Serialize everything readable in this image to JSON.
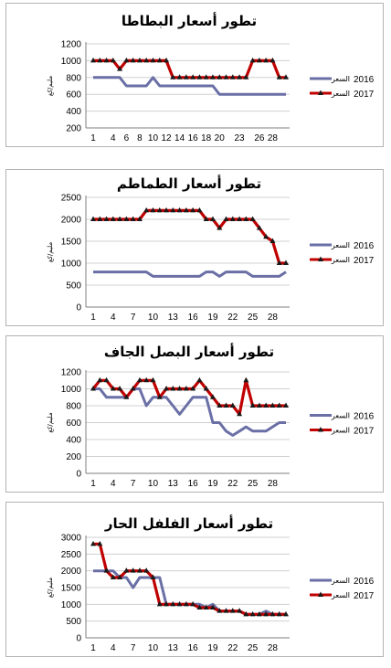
{
  "colors": {
    "series_2016": "#6a6fa5",
    "series_2017": "#c00000",
    "marker_2017": "#1a1a1a",
    "grid": "#d0d0d0",
    "axis": "#7f7f7f"
  },
  "chart_data": [
    {
      "type": "line",
      "title": "تطور أسعار البطاطا",
      "ylabel": "مليم/كغ",
      "ylim": [
        200,
        1200
      ],
      "yticks": [
        200,
        400,
        600,
        800,
        1000,
        1200
      ],
      "xticks": [
        1,
        4,
        6,
        8,
        10,
        12,
        14,
        16,
        18,
        20,
        23,
        26,
        28
      ],
      "x": [
        1,
        2,
        3,
        4,
        5,
        6,
        7,
        8,
        9,
        10,
        11,
        12,
        13,
        14,
        15,
        16,
        17,
        18,
        19,
        20,
        21,
        22,
        23,
        24,
        25,
        26,
        27,
        28,
        29,
        30
      ],
      "series": [
        {
          "name": "2016 السعر",
          "legend_year": "2016",
          "legend_word": "السعر",
          "values": [
            800,
            800,
            800,
            800,
            800,
            700,
            700,
            700,
            700,
            800,
            700,
            700,
            700,
            700,
            700,
            700,
            700,
            700,
            700,
            600,
            600,
            600,
            600,
            600,
            600,
            600,
            600,
            600,
            600,
            600
          ]
        },
        {
          "name": "2017 السعر",
          "legend_year": "2017",
          "legend_word": "السعر",
          "values": [
            1000,
            1000,
            1000,
            1000,
            900,
            1000,
            1000,
            1000,
            1000,
            1000,
            1000,
            1000,
            800,
            800,
            800,
            800,
            800,
            800,
            800,
            800,
            800,
            800,
            800,
            800,
            1000,
            1000,
            1000,
            1000,
            800,
            800
          ]
        }
      ],
      "legend_position": "right"
    },
    {
      "type": "line",
      "title": "تطور أسعار الطماطم",
      "ylabel": "مليم/كغ",
      "ylim": [
        0,
        2500
      ],
      "yticks": [
        0,
        500,
        1000,
        1500,
        2000,
        2500
      ],
      "xticks": [
        1,
        4,
        7,
        10,
        13,
        16,
        19,
        22,
        25,
        28
      ],
      "x": [
        1,
        2,
        3,
        4,
        5,
        6,
        7,
        8,
        9,
        10,
        11,
        12,
        13,
        14,
        15,
        16,
        17,
        18,
        19,
        20,
        21,
        22,
        23,
        24,
        25,
        26,
        27,
        28,
        29,
        30
      ],
      "series": [
        {
          "name": "2016 السعر",
          "legend_year": "2016",
          "legend_word": "السعر",
          "values": [
            800,
            800,
            800,
            800,
            800,
            800,
            800,
            800,
            800,
            700,
            700,
            700,
            700,
            700,
            700,
            700,
            700,
            800,
            800,
            700,
            800,
            800,
            800,
            800,
            700,
            700,
            700,
            700,
            700,
            800
          ]
        },
        {
          "name": "2017 السعر",
          "legend_year": "2017",
          "legend_word": "السعر",
          "values": [
            2000,
            2000,
            2000,
            2000,
            2000,
            2000,
            2000,
            2000,
            2200,
            2200,
            2200,
            2200,
            2200,
            2200,
            2200,
            2200,
            2200,
            2000,
            2000,
            1800,
            2000,
            2000,
            2000,
            2000,
            2000,
            1800,
            1600,
            1500,
            1000,
            1000
          ]
        }
      ],
      "legend_position": "right"
    },
    {
      "type": "line",
      "title": "تطور أسعار البصل الجاف",
      "ylabel": "مليم/كغ",
      "ylim": [
        0,
        1200
      ],
      "yticks": [
        0,
        200,
        400,
        600,
        800,
        1000,
        1200
      ],
      "xticks": [
        1,
        4,
        7,
        10,
        13,
        16,
        19,
        22,
        25,
        28
      ],
      "x": [
        1,
        2,
        3,
        4,
        5,
        6,
        7,
        8,
        9,
        10,
        11,
        12,
        13,
        14,
        15,
        16,
        17,
        18,
        19,
        20,
        21,
        22,
        23,
        24,
        25,
        26,
        27,
        28,
        29,
        30
      ],
      "series": [
        {
          "name": "2016 السعر",
          "legend_year": "2016",
          "legend_word": "السعر",
          "values": [
            1000,
            1000,
            900,
            900,
            900,
            900,
            1000,
            1000,
            800,
            900,
            900,
            900,
            800,
            700,
            800,
            900,
            900,
            900,
            600,
            600,
            500,
            450,
            500,
            550,
            500,
            500,
            500,
            550,
            600,
            600
          ]
        },
        {
          "name": "2017 السعر",
          "legend_year": "2017",
          "legend_word": "السعر",
          "values": [
            1000,
            1100,
            1100,
            1000,
            1000,
            900,
            1000,
            1100,
            1100,
            1100,
            900,
            1000,
            1000,
            1000,
            1000,
            1000,
            1100,
            1000,
            900,
            800,
            800,
            800,
            700,
            1100,
            800,
            800,
            800,
            800,
            800,
            800
          ]
        }
      ],
      "legend_position": "right"
    },
    {
      "type": "line",
      "title": "تطور أسعار الفلفل الحار",
      "ylabel": "مليم/كغ",
      "ylim": [
        0,
        3000
      ],
      "yticks": [
        0,
        500,
        1000,
        1500,
        2000,
        2500,
        3000
      ],
      "xticks": [
        1,
        4,
        7,
        10,
        13,
        16,
        19,
        22,
        25,
        28
      ],
      "x": [
        1,
        2,
        3,
        4,
        5,
        6,
        7,
        8,
        9,
        10,
        11,
        12,
        13,
        14,
        15,
        16,
        17,
        18,
        19,
        20,
        21,
        22,
        23,
        24,
        25,
        26,
        27,
        28,
        29,
        30
      ],
      "series": [
        {
          "name": "2016 السعر",
          "legend_year": "2016",
          "legend_word": "السعر",
          "values": [
            2000,
            2000,
            2000,
            2000,
            1800,
            1800,
            1500,
            1800,
            1800,
            1800,
            1800,
            1000,
            1000,
            1000,
            1000,
            1000,
            1000,
            900,
            1000,
            800,
            800,
            800,
            800,
            700,
            700,
            700,
            800,
            700,
            700,
            700
          ]
        },
        {
          "name": "2017 السعر",
          "legend_year": "2017",
          "legend_word": "السعر",
          "values": [
            2800,
            2800,
            2000,
            1800,
            1800,
            2000,
            2000,
            2000,
            2000,
            1800,
            1000,
            1000,
            1000,
            1000,
            1000,
            1000,
            900,
            900,
            900,
            800,
            800,
            800,
            800,
            700,
            700,
            700,
            700,
            700,
            700,
            700
          ]
        }
      ],
      "legend_position": "right"
    }
  ]
}
